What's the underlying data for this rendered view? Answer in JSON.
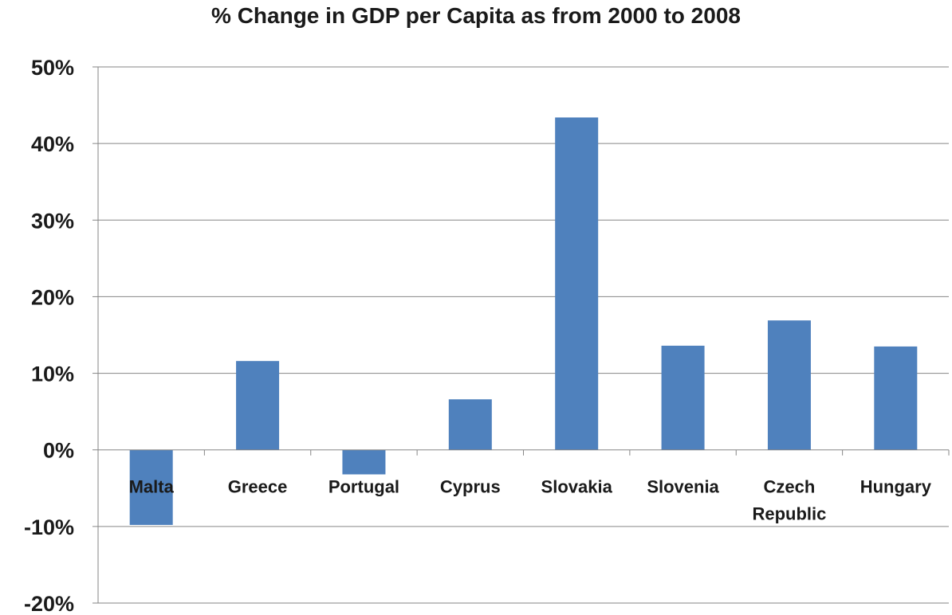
{
  "chart_data": {
    "type": "bar",
    "title": "% Change  in GDP per Capita as from 2000 to 2008",
    "xlabel": "",
    "ylabel": "",
    "categories": [
      "Malta",
      "Greece",
      "Portugal",
      "Cyprus",
      "Slovakia",
      "Slovenia",
      "Czech Republic",
      "Hungary"
    ],
    "category_lines": [
      [
        "Malta"
      ],
      [
        "Greece"
      ],
      [
        "Portugal"
      ],
      [
        "Cyprus"
      ],
      [
        "Slovakia"
      ],
      [
        "Slovenia"
      ],
      [
        "Czech",
        "Republic"
      ],
      [
        "Hungary"
      ]
    ],
    "values": [
      -9.8,
      11.6,
      -3.2,
      6.6,
      43.4,
      13.6,
      16.9,
      13.5
    ],
    "ylim": [
      -20,
      50
    ],
    "yticks": [
      -20,
      -10,
      0,
      10,
      20,
      30,
      40,
      50
    ],
    "ytick_labels": [
      "-20%",
      "-10%",
      "0%",
      "10%",
      "20%",
      "30%",
      "40%",
      "50%"
    ],
    "grid": true,
    "legend": "none",
    "bar_color": "#4F81BD",
    "grid_color": "#868686",
    "axis_color": "#868686"
  }
}
